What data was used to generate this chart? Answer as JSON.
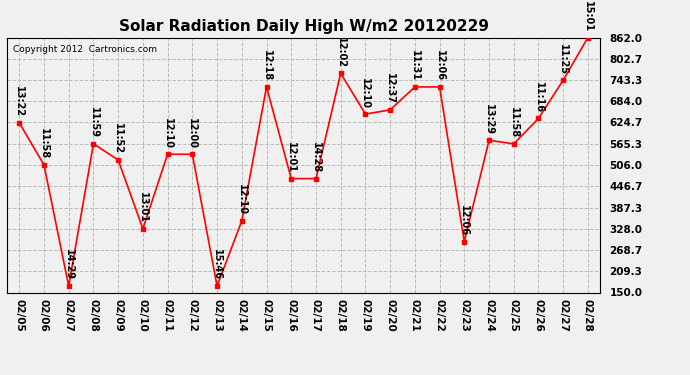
{
  "title": "Solar Radiation Daily High W/m2 20120229",
  "copyright": "Copyright 2012  Cartronics.com",
  "dates": [
    "02/05",
    "02/06",
    "02/07",
    "02/08",
    "02/09",
    "02/10",
    "02/11",
    "02/12",
    "02/13",
    "02/14",
    "02/15",
    "02/16",
    "02/17",
    "02/18",
    "02/19",
    "02/20",
    "02/21",
    "02/22",
    "02/23",
    "02/24",
    "02/25",
    "02/26",
    "02/27",
    "02/28"
  ],
  "values": [
    624,
    506,
    168,
    565,
    520,
    328,
    536,
    536,
    168,
    350,
    724,
    468,
    468,
    762,
    648,
    660,
    724,
    724,
    292,
    575,
    565,
    636,
    743,
    862
  ],
  "labels": [
    "13:22",
    "11:58",
    "14:29",
    "11:59",
    "11:52",
    "13:01",
    "12:10",
    "12:00",
    "15:46",
    "12:10",
    "12:18",
    "12:01",
    "14:28",
    "12:02",
    "12:10",
    "12:37",
    "11:31",
    "12:06",
    "12:06",
    "13:29",
    "11:58",
    "11:16",
    "11:25",
    "15:01"
  ],
  "ylim_min": 150.0,
  "ylim_max": 862.0,
  "yticks": [
    150.0,
    209.3,
    268.7,
    328.0,
    387.3,
    446.7,
    506.0,
    565.3,
    624.7,
    684.0,
    743.3,
    802.7,
    862.0
  ],
  "line_color": "#ff0000",
  "marker_color": "#ff0000",
  "bg_color": "#f0f0f0",
  "plot_bg_color": "#f0f0f0",
  "grid_color": "#bbbbbb",
  "title_fontsize": 11,
  "label_fontsize": 7,
  "tick_fontsize": 7.5,
  "copyright_fontsize": 6.5
}
